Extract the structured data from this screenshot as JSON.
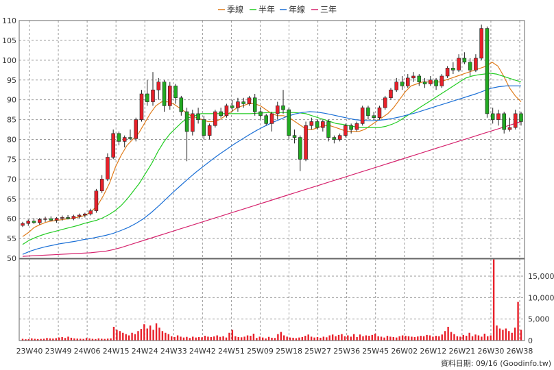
{
  "credit": "資料日期: 09/16 (Goodinfo.tw)",
  "chart_data": {
    "type": "candlestick",
    "legend": [
      {
        "name": "季線",
        "color": "#e07b1a"
      },
      {
        "name": "半年",
        "color": "#22cc22"
      },
      {
        "name": "年線",
        "color": "#1a6fd6"
      },
      {
        "name": "三年",
        "color": "#d6246e"
      }
    ],
    "price_axis": {
      "ylim": [
        50,
        110
      ],
      "ticks": [
        "50",
        "55",
        "60",
        "65",
        "70",
        "75",
        "80",
        "85",
        "90",
        "95",
        "100",
        "105",
        "110"
      ]
    },
    "volume_axis": {
      "ylim": [
        0,
        19000
      ],
      "ticks": [
        "0",
        "5,000",
        "10,000",
        "15,000"
      ]
    },
    "x_ticks": [
      "23W40",
      "23W49",
      "24W06",
      "24W15",
      "24W24",
      "24W33",
      "24W42",
      "24W51",
      "25W09",
      "25W18",
      "25W27",
      "25W36",
      "25W45",
      "26W02",
      "26W12",
      "26W21",
      "26W30",
      "26W38"
    ],
    "grid": true,
    "up_color": "#e8202a",
    "down_color": "#22aa22",
    "candles": [
      {
        "o": 58.3,
        "h": 59.2,
        "l": 57.9,
        "c": 58.8
      },
      {
        "o": 58.8,
        "h": 59.8,
        "l": 58.2,
        "c": 59.4
      },
      {
        "o": 59.4,
        "h": 60.1,
        "l": 58.7,
        "c": 59.0
      },
      {
        "o": 59.0,
        "h": 60.2,
        "l": 58.5,
        "c": 59.8
      },
      {
        "o": 59.8,
        "h": 60.5,
        "l": 59.2,
        "c": 60.0
      },
      {
        "o": 60.0,
        "h": 60.6,
        "l": 59.4,
        "c": 59.6
      },
      {
        "o": 59.6,
        "h": 60.4,
        "l": 59.0,
        "c": 60.1
      },
      {
        "o": 60.1,
        "h": 60.8,
        "l": 59.5,
        "c": 60.3
      },
      {
        "o": 60.3,
        "h": 60.9,
        "l": 59.8,
        "c": 60.0
      },
      {
        "o": 60.0,
        "h": 61.0,
        "l": 59.6,
        "c": 60.6
      },
      {
        "o": 60.6,
        "h": 61.3,
        "l": 60.0,
        "c": 60.9
      },
      {
        "o": 60.9,
        "h": 61.5,
        "l": 60.3,
        "c": 61.2
      },
      {
        "o": 61.2,
        "h": 62.5,
        "l": 60.8,
        "c": 62.0
      },
      {
        "o": 62.0,
        "h": 67.5,
        "l": 61.5,
        "c": 67.0
      },
      {
        "o": 67.0,
        "h": 71.0,
        "l": 66.5,
        "c": 70.0
      },
      {
        "o": 70.0,
        "h": 76.5,
        "l": 69.5,
        "c": 75.5
      },
      {
        "o": 75.5,
        "h": 82.5,
        "l": 75.0,
        "c": 81.5
      },
      {
        "o": 81.5,
        "h": 82.0,
        "l": 78.5,
        "c": 79.5
      },
      {
        "o": 79.5,
        "h": 81.0,
        "l": 78.0,
        "c": 80.5
      },
      {
        "o": 80.5,
        "h": 82.5,
        "l": 79.8,
        "c": 80.2
      },
      {
        "o": 80.2,
        "h": 85.5,
        "l": 79.5,
        "c": 85.0
      },
      {
        "o": 85.0,
        "h": 92.5,
        "l": 84.5,
        "c": 91.5
      },
      {
        "o": 91.5,
        "h": 95.0,
        "l": 88.5,
        "c": 89.5
      },
      {
        "o": 89.5,
        "h": 97.0,
        "l": 88.5,
        "c": 92.5
      },
      {
        "o": 92.5,
        "h": 95.5,
        "l": 90.0,
        "c": 94.5
      },
      {
        "o": 94.5,
        "h": 95.0,
        "l": 87.0,
        "c": 88.5
      },
      {
        "o": 88.5,
        "h": 94.5,
        "l": 87.5,
        "c": 93.5
      },
      {
        "o": 93.5,
        "h": 94.0,
        "l": 89.0,
        "c": 90.5
      },
      {
        "o": 90.5,
        "h": 91.0,
        "l": 86.0,
        "c": 87.0
      },
      {
        "o": 87.0,
        "h": 88.0,
        "l": 74.5,
        "c": 82.0
      },
      {
        "o": 82.0,
        "h": 87.5,
        "l": 81.0,
        "c": 86.5
      },
      {
        "o": 86.5,
        "h": 88.0,
        "l": 84.0,
        "c": 85.0
      },
      {
        "o": 85.0,
        "h": 86.0,
        "l": 80.0,
        "c": 81.0
      },
      {
        "o": 81.0,
        "h": 84.0,
        "l": 80.0,
        "c": 83.5
      },
      {
        "o": 83.5,
        "h": 87.5,
        "l": 83.0,
        "c": 87.0
      },
      {
        "o": 87.0,
        "h": 88.0,
        "l": 85.5,
        "c": 86.0
      },
      {
        "o": 86.0,
        "h": 89.0,
        "l": 85.5,
        "c": 88.5
      },
      {
        "o": 88.5,
        "h": 90.0,
        "l": 87.0,
        "c": 88.0
      },
      {
        "o": 88.0,
        "h": 90.5,
        "l": 87.0,
        "c": 89.5
      },
      {
        "o": 89.5,
        "h": 90.5,
        "l": 88.0,
        "c": 89.0
      },
      {
        "o": 89.0,
        "h": 91.0,
        "l": 88.5,
        "c": 90.5
      },
      {
        "o": 90.5,
        "h": 91.5,
        "l": 86.0,
        "c": 87.0
      },
      {
        "o": 87.0,
        "h": 88.0,
        "l": 85.0,
        "c": 86.0
      },
      {
        "o": 86.0,
        "h": 86.5,
        "l": 83.5,
        "c": 84.0
      },
      {
        "o": 84.0,
        "h": 87.0,
        "l": 82.0,
        "c": 86.5
      },
      {
        "o": 86.5,
        "h": 89.5,
        "l": 85.0,
        "c": 88.5
      },
      {
        "o": 88.5,
        "h": 92.5,
        "l": 86.5,
        "c": 87.5
      },
      {
        "o": 87.5,
        "h": 88.0,
        "l": 80.0,
        "c": 81.0
      },
      {
        "o": 81.0,
        "h": 82.5,
        "l": 79.0,
        "c": 80.5
      },
      {
        "o": 80.5,
        "h": 81.0,
        "l": 72.0,
        "c": 75.0
      },
      {
        "o": 75.0,
        "h": 84.5,
        "l": 74.5,
        "c": 83.5
      },
      {
        "o": 83.5,
        "h": 85.5,
        "l": 82.5,
        "c": 84.5
      },
      {
        "o": 84.5,
        "h": 85.0,
        "l": 82.5,
        "c": 83.0
      },
      {
        "o": 83.0,
        "h": 85.0,
        "l": 82.0,
        "c": 84.5
      },
      {
        "o": 84.5,
        "h": 85.0,
        "l": 79.5,
        "c": 80.5
      },
      {
        "o": 80.5,
        "h": 81.0,
        "l": 79.0,
        "c": 80.0
      },
      {
        "o": 80.0,
        "h": 81.5,
        "l": 79.5,
        "c": 81.0
      },
      {
        "o": 81.0,
        "h": 84.0,
        "l": 80.5,
        "c": 83.5
      },
      {
        "o": 83.5,
        "h": 84.0,
        "l": 81.5,
        "c": 82.5
      },
      {
        "o": 82.5,
        "h": 84.5,
        "l": 82.0,
        "c": 84.0
      },
      {
        "o": 84.0,
        "h": 88.5,
        "l": 83.5,
        "c": 88.0
      },
      {
        "o": 88.0,
        "h": 88.5,
        "l": 85.0,
        "c": 86.0
      },
      {
        "o": 86.0,
        "h": 87.0,
        "l": 85.0,
        "c": 85.5
      },
      {
        "o": 85.5,
        "h": 88.5,
        "l": 85.0,
        "c": 88.0
      },
      {
        "o": 88.0,
        "h": 91.0,
        "l": 87.5,
        "c": 90.5
      },
      {
        "o": 90.5,
        "h": 93.0,
        "l": 90.0,
        "c": 92.5
      },
      {
        "o": 92.5,
        "h": 95.5,
        "l": 92.0,
        "c": 94.5
      },
      {
        "o": 94.5,
        "h": 96.0,
        "l": 92.5,
        "c": 93.5
      },
      {
        "o": 93.5,
        "h": 96.5,
        "l": 93.0,
        "c": 95.5
      },
      {
        "o": 95.5,
        "h": 97.0,
        "l": 94.5,
        "c": 96.0
      },
      {
        "o": 96.0,
        "h": 96.5,
        "l": 93.5,
        "c": 94.5
      },
      {
        "o": 94.5,
        "h": 95.5,
        "l": 93.0,
        "c": 94.0
      },
      {
        "o": 94.0,
        "h": 96.0,
        "l": 93.5,
        "c": 95.0
      },
      {
        "o": 95.0,
        "h": 95.5,
        "l": 92.5,
        "c": 93.5
      },
      {
        "o": 93.5,
        "h": 96.5,
        "l": 93.0,
        "c": 96.0
      },
      {
        "o": 96.0,
        "h": 98.5,
        "l": 95.5,
        "c": 98.0
      },
      {
        "o": 98.0,
        "h": 99.5,
        "l": 96.5,
        "c": 97.5
      },
      {
        "o": 97.5,
        "h": 101.5,
        "l": 97.0,
        "c": 100.5
      },
      {
        "o": 100.5,
        "h": 102.0,
        "l": 99.0,
        "c": 99.5
      },
      {
        "o": 99.5,
        "h": 100.5,
        "l": 96.0,
        "c": 97.5
      },
      {
        "o": 97.5,
        "h": 101.5,
        "l": 97.0,
        "c": 100.5
      },
      {
        "o": 100.5,
        "h": 109.0,
        "l": 100.0,
        "c": 108.0
      },
      {
        "o": 108.0,
        "h": 108.5,
        "l": 85.5,
        "c": 86.5
      },
      {
        "o": 86.5,
        "h": 88.0,
        "l": 84.0,
        "c": 85.0
      },
      {
        "o": 85.0,
        "h": 87.5,
        "l": 83.5,
        "c": 86.5
      },
      {
        "o": 86.5,
        "h": 87.0,
        "l": 81.5,
        "c": 82.5
      },
      {
        "o": 82.5,
        "h": 85.5,
        "l": 82.0,
        "c": 83.0
      },
      {
        "o": 83.0,
        "h": 87.5,
        "l": 82.5,
        "c": 86.5
      },
      {
        "o": 86.5,
        "h": 87.0,
        "l": 83.5,
        "c": 84.5
      }
    ],
    "ma_quarter": [
      55.5,
      56.5,
      57.8,
      58.5,
      59.1,
      59.4,
      59.6,
      59.8,
      60.0,
      60.2,
      60.5,
      61.0,
      62.0,
      63.5,
      66.0,
      69.0,
      73.0,
      76.0,
      78.5,
      80.0,
      81.5,
      84.0,
      86.5,
      88.5,
      89.5,
      89.5,
      89.0,
      88.0,
      87.0,
      86.0,
      85.5,
      85.0,
      84.5,
      84.5,
      85.0,
      86.0,
      87.0,
      88.0,
      88.5,
      89.0,
      89.0,
      88.5,
      87.5,
      86.5,
      86.0,
      86.0,
      85.5,
      84.5,
      83.5,
      82.5,
      82.5,
      83.0,
      83.5,
      83.5,
      83.0,
      82.5,
      82.0,
      82.0,
      82.0,
      82.5,
      83.5,
      84.5,
      85.5,
      86.5,
      88.0,
      90.0,
      92.0,
      93.5,
      94.0,
      94.5,
      94.5,
      94.5,
      94.5,
      95.0,
      95.5,
      96.0,
      96.5,
      97.0,
      97.5,
      98.0,
      98.5,
      99.5,
      98.5,
      96.0,
      93.0,
      91.0,
      89.5
    ],
    "ma_half": [
      53.5,
      54.5,
      55.2,
      55.8,
      56.3,
      56.7,
      57.1,
      57.5,
      57.9,
      58.3,
      58.8,
      59.2,
      59.6,
      60.2,
      61.0,
      62.0,
      63.3,
      65.0,
      67.0,
      69.0,
      71.5,
      74.0,
      77.0,
      79.5,
      81.5,
      83.0,
      84.5,
      85.5,
      86.0,
      86.5,
      86.5,
      86.5,
      86.5,
      86.5,
      86.5,
      86.5,
      86.5,
      86.5,
      86.6,
      86.7,
      86.8,
      86.8,
      86.8,
      86.8,
      86.8,
      86.7,
      86.5,
      86.0,
      85.5,
      85.0,
      84.5,
      84.0,
      83.8,
      83.5,
      83.2,
      83.0,
      83.0,
      83.0,
      83.0,
      83.3,
      83.8,
      84.5,
      85.5,
      86.5,
      87.5,
      88.5,
      89.5,
      90.5,
      91.5,
      92.5,
      93.5,
      94.5,
      95.5,
      96.0,
      96.3,
      96.5,
      96.7,
      96.5,
      96.0,
      95.5,
      95.0,
      94.5
    ],
    "ma_year": [
      51.0,
      51.8,
      52.4,
      52.9,
      53.3,
      53.7,
      54.0,
      54.3,
      54.7,
      55.0,
      55.4,
      55.8,
      56.3,
      57.0,
      57.8,
      58.8,
      60.0,
      61.5,
      63.2,
      65.0,
      66.8,
      68.5,
      70.2,
      71.8,
      73.3,
      74.8,
      76.2,
      77.5,
      78.8,
      80.0,
      81.2,
      82.3,
      83.3,
      84.2,
      85.0,
      85.8,
      86.4,
      86.8,
      87.0,
      86.9,
      86.6,
      86.2,
      85.8,
      85.4,
      85.0,
      84.8,
      84.7,
      84.8,
      85.0,
      85.3,
      85.7,
      86.2,
      86.7,
      87.3,
      87.9,
      88.5,
      89.1,
      89.7,
      90.3,
      90.9,
      91.5,
      92.2,
      92.9,
      93.3,
      93.5,
      93.5,
      93.5
    ],
    "ma_3year": [
      50.5,
      50.6,
      50.7,
      50.8,
      50.9,
      51.0,
      51.1,
      51.2,
      51.3,
      51.4,
      51.6,
      51.8,
      52.2,
      52.7,
      53.3,
      53.9,
      54.5,
      55.1,
      55.7,
      56.3,
      56.9,
      57.5,
      58.1,
      58.7,
      59.3,
      59.9,
      60.5,
      61.1,
      61.7,
      62.3,
      62.9,
      63.5,
      64.1,
      64.7,
      65.3,
      65.9,
      66.5,
      67.1,
      67.7,
      68.3,
      68.9,
      69.5,
      70.1,
      70.7,
      71.3,
      71.9,
      72.5,
      73.1,
      73.7,
      74.3,
      74.9,
      75.5,
      76.1,
      76.7,
      77.3,
      77.9,
      78.5,
      79.1,
      79.7,
      80.3,
      80.9,
      81.5,
      82.1,
      82.7,
      83.3,
      83.9,
      84.5
    ],
    "volume": [
      400,
      300,
      350,
      500,
      400,
      350,
      380,
      420,
      600,
      500,
      450,
      550,
      700,
      800,
      600,
      900,
      650,
      500,
      450,
      420,
      380,
      600,
      500,
      400,
      350,
      500,
      420,
      380,
      450,
      500,
      3200,
      2500,
      2200,
      1800,
      1500,
      1200,
      1800,
      1500,
      2200,
      2700,
      3800,
      2800,
      3500,
      2500,
      4000,
      3000,
      2200,
      1800,
      1500,
      1000,
      800,
      1200,
      900,
      700,
      850,
      600,
      900,
      700,
      800,
      750,
      1100,
      900,
      800,
      950,
      1200,
      850,
      1000,
      700,
      1800,
      2500,
      1000,
      800,
      750,
      900,
      1200,
      1100,
      1600,
      600,
      900,
      700,
      500,
      850,
      650,
      600,
      1500,
      2000,
      1200,
      900,
      700,
      650,
      550,
      700,
      800,
      1100,
      1400,
      900,
      700,
      800,
      650,
      900,
      750,
      1200,
      1400,
      1000,
      1300,
      1500,
      1000,
      1200,
      900,
      1500,
      800,
      1400,
      1000,
      1200,
      1100,
      1300,
      1600,
      1000,
      900,
      700,
      1100,
      900,
      800,
      700,
      1000,
      1200,
      1100,
      1000,
      900,
      800,
      950,
      1100,
      1000,
      1300,
      1200,
      900,
      1100,
      1000,
      1400,
      2200,
      3200,
      2000,
      1500,
      1000,
      900,
      1300,
      1100,
      1800,
      1000,
      1400,
      1200,
      900,
      1600,
      1000,
      1200,
      18900,
      3500,
      2800,
      2500,
      2800,
      2200,
      1800,
      3000,
      9000,
      2500
    ]
  }
}
